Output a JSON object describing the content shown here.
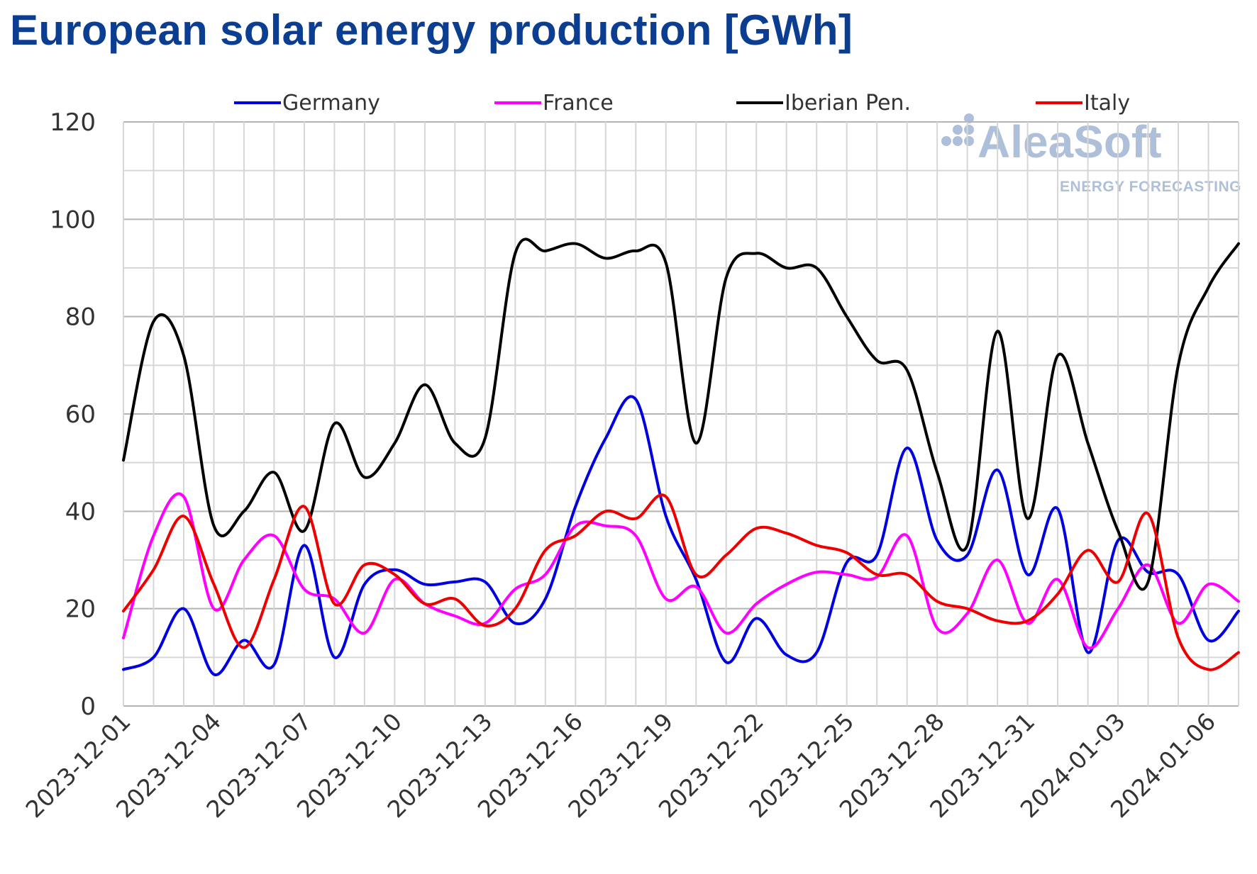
{
  "title": "European solar energy production [GWh]",
  "watermark": {
    "name": "AleaSoft",
    "sub": "ENERGY FORECASTING",
    "color": "#aebfd9"
  },
  "chart_data": {
    "type": "line",
    "title": "European solar energy production [GWh]",
    "xlabel": "",
    "ylabel": "",
    "ylim": [
      0,
      120
    ],
    "yticks": [
      "0",
      "20",
      "40",
      "60",
      "80",
      "100",
      "120"
    ],
    "grid": true,
    "legend_position": "top",
    "x": [
      "2023-12-01",
      "2023-12-02",
      "2023-12-03",
      "2023-12-04",
      "2023-12-05",
      "2023-12-06",
      "2023-12-07",
      "2023-12-08",
      "2023-12-09",
      "2023-12-10",
      "2023-12-11",
      "2023-12-12",
      "2023-12-13",
      "2023-12-14",
      "2023-12-15",
      "2023-12-16",
      "2023-12-17",
      "2023-12-18",
      "2023-12-19",
      "2023-12-20",
      "2023-12-21",
      "2023-12-22",
      "2023-12-23",
      "2023-12-24",
      "2023-12-25",
      "2023-12-26",
      "2023-12-27",
      "2023-12-28",
      "2023-12-29",
      "2023-12-30",
      "2023-12-31",
      "2024-01-01",
      "2024-01-02",
      "2024-01-03",
      "2024-01-04",
      "2024-01-05",
      "2024-01-06",
      "2024-01-07"
    ],
    "x_tick_labels": [
      "2023-12-01",
      "2023-12-04",
      "2023-12-07",
      "2023-12-10",
      "2023-12-13",
      "2023-12-16",
      "2023-12-19",
      "2023-12-22",
      "2023-12-25",
      "2023-12-28",
      "2023-12-31",
      "2024-01-03",
      "2024-01-06"
    ],
    "series": [
      {
        "name": "Germany",
        "color": "#0000e0",
        "values": [
          7.5,
          10,
          20,
          6.5,
          13.5,
          8.5,
          33,
          10,
          25,
          28,
          25,
          25.5,
          25.5,
          17,
          22,
          41,
          55,
          63,
          39,
          26,
          9,
          18,
          10.5,
          11,
          29.5,
          31,
          53,
          34,
          31,
          48.5,
          27,
          40.5,
          11,
          34,
          27.5,
          27,
          13.5,
          19.5
        ]
      },
      {
        "name": "France",
        "color": "#ff00ff",
        "values": [
          14,
          35,
          43,
          20,
          30,
          35,
          24,
          22,
          15,
          26,
          21,
          18.5,
          17,
          24,
          27,
          37,
          37,
          35,
          22,
          24.5,
          15,
          21,
          25,
          27.5,
          27,
          26.5,
          35,
          16,
          19,
          30,
          17,
          26,
          12,
          20,
          29,
          17,
          25,
          21.5
        ]
      },
      {
        "name": "Iberian Pen.",
        "color": "#000000",
        "values": [
          50.5,
          79,
          72,
          37,
          40,
          48,
          36,
          58,
          47,
          54,
          66,
          54,
          55,
          93,
          93.5,
          95,
          92,
          93.5,
          91,
          54,
          88,
          93,
          90,
          90,
          80,
          71,
          69,
          48,
          33,
          77,
          38.5,
          72,
          54,
          36,
          25.5,
          70,
          86,
          95
        ]
      },
      {
        "name": "Italy",
        "color": "#ee0000",
        "values": [
          19.5,
          28,
          39,
          25,
          12,
          26,
          41,
          21,
          29,
          27,
          21,
          22,
          16.5,
          20,
          32,
          35,
          40,
          38.5,
          43,
          27,
          31,
          36.5,
          35.5,
          33,
          31.5,
          27,
          27,
          21.5,
          20,
          17.5,
          17.5,
          23,
          32,
          25.5,
          39.5,
          14,
          7.5,
          11
        ]
      }
    ]
  }
}
